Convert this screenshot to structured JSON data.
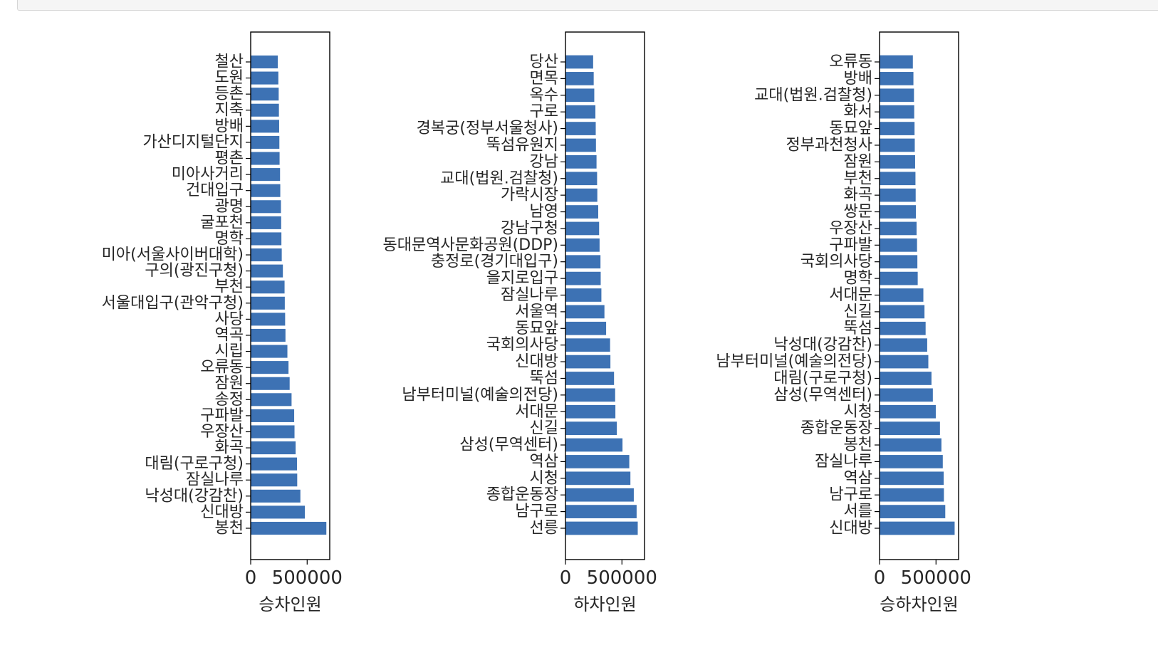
{
  "chart_data": [
    {
      "type": "bar",
      "orientation": "horizontal",
      "xlabel": "승차인원",
      "xlim": [
        0,
        700000
      ],
      "xticks": [
        0,
        500000
      ],
      "xtick_labels": [
        "0",
        "500000"
      ],
      "bar_color": "#3d72b4",
      "categories": [
        "철산",
        "도원",
        "등촌",
        "지축",
        "방배",
        "가산디지털단지",
        "평촌",
        "미아사거리",
        "건대입구",
        "광명",
        "굴포천",
        "명학",
        "미아(서울사이버대학)",
        "구의(광진구청)",
        "부천",
        "서울대입구(관악구청)",
        "사당",
        "역곡",
        "시립",
        "오류동",
        "잠원",
        "송정",
        "구파발",
        "우장산",
        "화곡",
        "대림(구로구청)",
        "잠실나루",
        "낙성대(강감찬)",
        "신대방",
        "봉천"
      ],
      "values": [
        240000,
        245000,
        248000,
        250000,
        252000,
        254000,
        256000,
        260000,
        262000,
        268000,
        270000,
        272000,
        275000,
        285000,
        300000,
        302000,
        305000,
        308000,
        325000,
        335000,
        345000,
        362000,
        385000,
        388000,
        398000,
        410000,
        412000,
        440000,
        480000,
        670000
      ]
    },
    {
      "type": "bar",
      "orientation": "horizontal",
      "xlabel": "하차인원",
      "xlim": [
        0,
        700000
      ],
      "xticks": [
        0,
        500000
      ],
      "xtick_labels": [
        "0",
        "500000"
      ],
      "bar_color": "#3d72b4",
      "categories": [
        "당산",
        "면목",
        "옥수",
        "구로",
        "경복궁(정부서울청사)",
        "뚝섬유원지",
        "강남",
        "교대(법원.검찰청)",
        "가락시장",
        "남영",
        "강남구청",
        "동대문역사문화공원(DDP)",
        "충정로(경기대입구)",
        "을지로입구",
        "잠실나루",
        "서울역",
        "동묘앞",
        "국회의사당",
        "신대방",
        "뚝섬",
        "남부터미널(예술의전당)",
        "서대문",
        "신길",
        "삼성(무역센터)",
        "역삼",
        "시청",
        "종합운동장",
        "남구로",
        "선릉"
      ],
      "values": [
        245000,
        250000,
        255000,
        265000,
        268000,
        270000,
        275000,
        280000,
        282000,
        290000,
        298000,
        302000,
        310000,
        312000,
        318000,
        345000,
        360000,
        395000,
        398000,
        430000,
        440000,
        442000,
        455000,
        505000,
        565000,
        575000,
        605000,
        630000,
        640000
      ]
    },
    {
      "type": "bar",
      "orientation": "horizontal",
      "xlabel": "승하차인원",
      "xlim": [
        0,
        700000
      ],
      "xticks": [
        0,
        500000
      ],
      "xtick_labels": [
        "0",
        "500000"
      ],
      "bar_color": "#3d72b4",
      "categories": [
        "오류동",
        "방배",
        "교대(법원.검찰청)",
        "화서",
        "동묘앞",
        "정부과천청사",
        "잠원",
        "부천",
        "화곡",
        "쌍문",
        "우장산",
        "구파발",
        "국회의사당",
        "명학",
        "서대문",
        "신길",
        "뚝섬",
        "낙성대(강감찬)",
        "남부터미널(예술의전당)",
        "대림(구로구청)",
        "삼성(무역센터)",
        "시청",
        "종합운동장",
        "봉천",
        "잠실나루",
        "역삼",
        "남구로",
        "서를",
        "신대방"
      ],
      "values": [
        295000,
        300000,
        305000,
        307000,
        310000,
        312000,
        315000,
        318000,
        320000,
        322000,
        328000,
        332000,
        335000,
        338000,
        388000,
        398000,
        408000,
        422000,
        432000,
        460000,
        472000,
        498000,
        535000,
        548000,
        560000,
        568000,
        570000,
        582000,
        665000
      ]
    }
  ]
}
